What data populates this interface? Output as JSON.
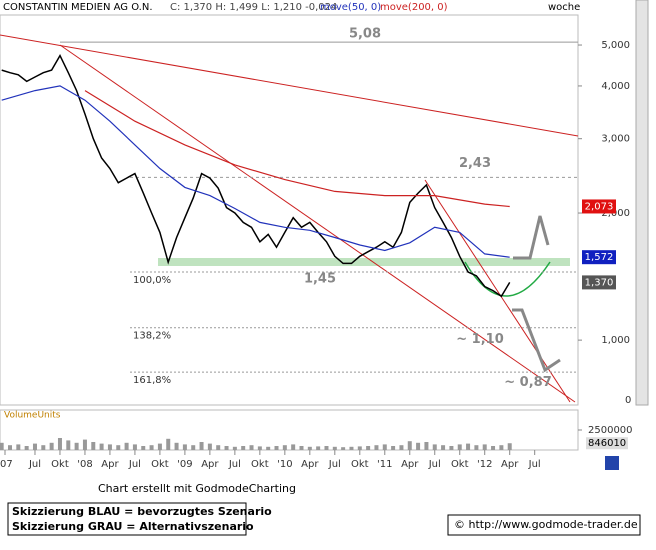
{
  "header": {
    "title": "CONSTANTIN MEDIEN AG O.N.",
    "quote": "C: 1,370 H: 1,499 L: 1,210 -0,024",
    "period": "woche"
  },
  "chart_data": {
    "type": "line",
    "yscale": "log",
    "x": [
      2,
      3,
      4,
      5,
      6,
      7,
      8,
      9,
      10,
      11,
      12,
      13,
      14,
      15,
      16,
      17,
      18,
      19,
      20,
      21,
      22,
      23,
      24,
      25,
      26,
      27,
      28,
      29,
      30,
      31,
      32,
      33,
      34,
      35,
      36,
      37,
      38,
      39,
      40,
      41,
      42,
      43,
      44,
      45,
      46,
      47,
      48,
      49,
      50,
      51,
      52,
      53,
      54,
      55,
      56,
      57,
      58,
      59,
      60,
      61,
      62,
      63
    ],
    "xlim": [
      1.8,
      71.2
    ],
    "xticks": [
      {
        "value": 2.4,
        "label": "'07"
      },
      {
        "value": 6,
        "label": "Jul"
      },
      {
        "value": 9,
        "label": "Okt"
      },
      {
        "value": 12,
        "label": "'08"
      },
      {
        "value": 15,
        "label": "Apr"
      },
      {
        "value": 18,
        "label": "Jul"
      },
      {
        "value": 21,
        "label": "Okt"
      },
      {
        "value": 24,
        "label": "'09"
      },
      {
        "value": 27,
        "label": "Apr"
      },
      {
        "value": 30,
        "label": "Jul"
      },
      {
        "value": 33,
        "label": "Okt"
      },
      {
        "value": 36,
        "label": "'10"
      },
      {
        "value": 39,
        "label": "Apr"
      },
      {
        "value": 42,
        "label": "Jul"
      },
      {
        "value": 45,
        "label": "Okt"
      },
      {
        "value": 48,
        "label": "'11"
      },
      {
        "value": 51,
        "label": "Apr"
      },
      {
        "value": 54,
        "label": "Jul"
      },
      {
        "value": 57,
        "label": "Okt"
      },
      {
        "value": 60,
        "label": "'12"
      },
      {
        "value": 63,
        "label": "Apr"
      },
      {
        "value": 66,
        "label": "Jul"
      }
    ],
    "ylim": [
      0.702,
      6.22
    ],
    "yticks": [
      {
        "value": 5,
        "label": "5,000"
      },
      {
        "value": 4,
        "label": "4,000"
      },
      {
        "value": 3,
        "label": "3,000"
      },
      {
        "value": 2,
        "label": "2,000"
      },
      {
        "value": 1,
        "label": "1,000"
      }
    ],
    "y_floor_label": "0",
    "series": [
      {
        "color": "#000000",
        "values": [
          4.36,
          4.3,
          4.25,
          4.1,
          4.2,
          4.3,
          4.36,
          4.72,
          4.3,
          3.9,
          3.43,
          3.0,
          2.7,
          2.55,
          2.36,
          2.42,
          2.48,
          2.23,
          2.0,
          1.8,
          1.53,
          1.75,
          1.95,
          2.17,
          2.48,
          2.42,
          2.29,
          2.06,
          2.0,
          1.9,
          1.85,
          1.71,
          1.78,
          1.66,
          1.8,
          1.95,
          1.85,
          1.9,
          1.8,
          1.71,
          1.58,
          1.52,
          1.52,
          1.58,
          1.62,
          1.66,
          1.71,
          1.66,
          1.8,
          2.12,
          2.23,
          2.33,
          2.06,
          1.9,
          1.75,
          1.58,
          1.45,
          1.42,
          1.34,
          1.31,
          1.27,
          1.37
        ]
      },
      {
        "name": "move(50, 0)",
        "color": "#2233bb",
        "x": [
          2,
          6,
          9,
          12,
          15,
          18,
          21,
          24,
          27,
          30,
          33,
          36,
          39,
          42,
          45,
          48,
          51,
          54,
          57,
          60,
          63
        ],
        "values": [
          3.7,
          3.9,
          4.0,
          3.7,
          3.3,
          2.9,
          2.55,
          2.3,
          2.2,
          2.05,
          1.9,
          1.85,
          1.82,
          1.75,
          1.68,
          1.63,
          1.7,
          1.85,
          1.8,
          1.6,
          1.572
        ]
      },
      {
        "name": "move(200, 0)",
        "color": "#cc2222",
        "x": [
          12,
          18,
          24,
          30,
          36,
          42,
          48,
          54,
          60,
          63
        ],
        "values": [
          3.9,
          3.3,
          2.9,
          2.6,
          2.4,
          2.25,
          2.2,
          2.2,
          2.1,
          2.073
        ]
      }
    ],
    "price_labels": [
      {
        "value": 2.073,
        "label": "2,073",
        "color": "#e01010"
      },
      {
        "value": 1.572,
        "label": "1,572",
        "color": "#1020c0"
      },
      {
        "value": 1.37,
        "label": "1,370",
        "color": "#555555"
      }
    ],
    "levels": [
      {
        "label": "5,08",
        "value": 5.08
      },
      {
        "label": "2,43",
        "value": 2.43
      },
      {
        "label": "100,0%",
        "value": 1.45
      },
      {
        "label": "138,2%",
        "value": 1.07
      },
      {
        "label": "161,8%",
        "value": 0.84
      }
    ],
    "annotations": [
      {
        "text": "1,45",
        "value": 1.45
      },
      {
        "text": "~ 1,10",
        "value": 1.1
      },
      {
        "text": "~ 0,87",
        "value": 0.87
      }
    ],
    "volume": {
      "name": "VolumeUnits",
      "color": "#999999",
      "ylim": [
        0,
        5000000
      ],
      "yticks": [
        2500000
      ],
      "values": [
        900000,
        600000,
        700000,
        500000,
        800000,
        600000,
        900000,
        1500000,
        1200000,
        900000,
        1300000,
        1000000,
        800000,
        700000,
        600000,
        900000,
        700000,
        500000,
        600000,
        800000,
        1400000,
        900000,
        700000,
        600000,
        1000000,
        800000,
        600000,
        500000,
        400000,
        500000,
        600000,
        450000,
        400000,
        500000,
        600000,
        700000,
        500000,
        400000,
        450000,
        500000,
        400000,
        350000,
        400000,
        450000,
        500000,
        600000,
        700000,
        500000,
        600000,
        1100000,
        900000,
        1000000,
        700000,
        600000,
        500000,
        700000,
        800000,
        600000,
        700000,
        500000,
        600000,
        846010
      ]
    }
  },
  "footer": {
    "credit": "Chart erstellt mit GodmodeCharting",
    "blue": "Skizzierung BLAU = bevorzugtes Szenario",
    "grey": "Skizzierung GRAU = Alternativszenario",
    "url": "© http://www.godmode-trader.de"
  }
}
